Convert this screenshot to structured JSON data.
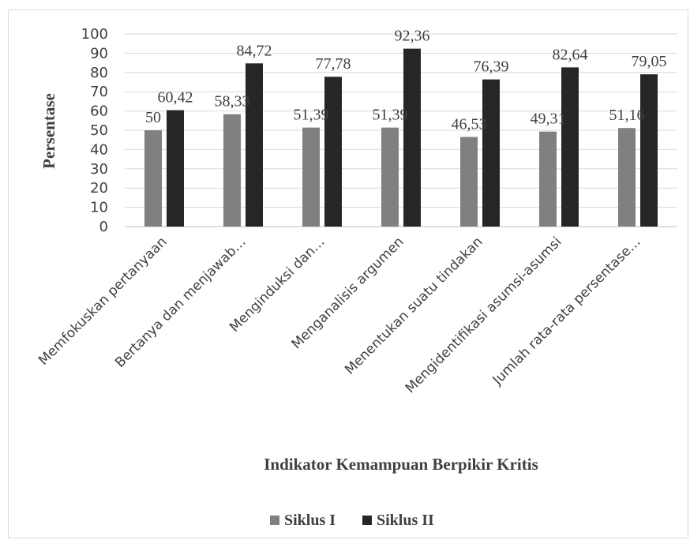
{
  "chart_data": {
    "type": "bar",
    "categories": [
      "Memfokuskan pertanyaan",
      "Bertanya dan menjawab…",
      "Menginduksi dan…",
      "Menganalisis argumen",
      "Menentukan suatu tindakan",
      "Mengidentifikasi asumsi-asumsi",
      "Jumlah rata-rata persentase…"
    ],
    "series": [
      {
        "name": "Siklus I",
        "values": [
          50,
          58.33,
          51.39,
          51.39,
          46.53,
          49.31,
          51.16
        ],
        "labels": [
          "50",
          "58,33",
          "51,39",
          "51,39",
          "46,53",
          "49,31",
          "51,16"
        ],
        "color": "#808080"
      },
      {
        "name": "Siklus II",
        "values": [
          60.42,
          84.72,
          77.78,
          92.36,
          76.39,
          82.64,
          79.05
        ],
        "labels": [
          "60,42",
          "84,72",
          "77,78",
          "92,36",
          "76,39",
          "82,64",
          "79,05"
        ],
        "color": "#262626"
      }
    ],
    "xlabel": "Indikator Kemampuan Berpikir Kritis",
    "ylabel": "Persentase",
    "ylim": [
      0,
      100
    ],
    "yticks": [
      0,
      10,
      20,
      30,
      40,
      50,
      60,
      70,
      80,
      90,
      100
    ],
    "grid": true,
    "legend_position": "bottom-center"
  }
}
